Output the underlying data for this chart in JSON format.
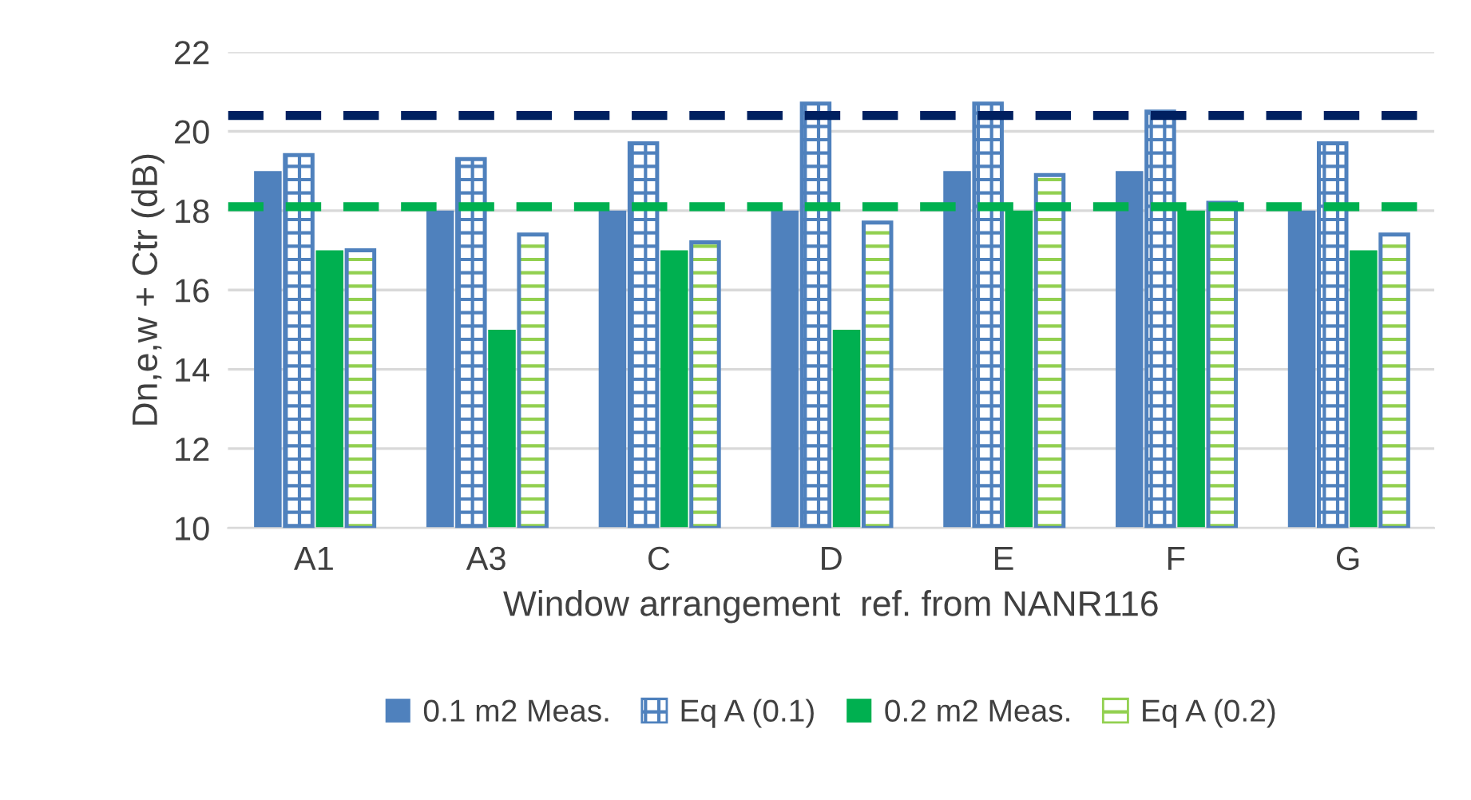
{
  "chart_data": {
    "type": "bar",
    "xlabel": "Window arrangement  ref. from NANR116",
    "ylabel": "Dn,e,w + Ctr (dB)",
    "categories": [
      "A1",
      "A3",
      "C",
      "D",
      "E",
      "F",
      "G"
    ],
    "series": [
      {
        "name": "0.1 m2 Meas.",
        "color": "#4f81bd",
        "values": [
          19,
          18,
          18,
          18,
          19,
          19,
          18
        ]
      },
      {
        "name": "Eq A (0.1)",
        "color": "#4f81bd",
        "values": [
          19.4,
          19.3,
          19.7,
          20.7,
          20.7,
          20.5,
          19.7
        ]
      },
      {
        "name": "0.2 m2 Meas.",
        "color": "#00b050",
        "values": [
          17,
          15,
          17,
          15,
          18,
          18,
          17
        ]
      },
      {
        "name": "Eq A (0.2)",
        "color": "#92d050",
        "values": [
          17.0,
          17.4,
          17.2,
          17.7,
          18.9,
          18.2,
          17.4
        ]
      }
    ],
    "ylim": [
      10,
      22
    ],
    "yticks": [
      10,
      12,
      14,
      16,
      18,
      20,
      22
    ],
    "grid": "y",
    "legend": "bottom",
    "ref_lines": [
      {
        "axis": "y",
        "value": 20.4,
        "color": "#002060",
        "line_style": "dashed"
      },
      {
        "axis": "y",
        "value": 18.1,
        "color": "#00b050",
        "line_style": "dashed"
      }
    ]
  }
}
